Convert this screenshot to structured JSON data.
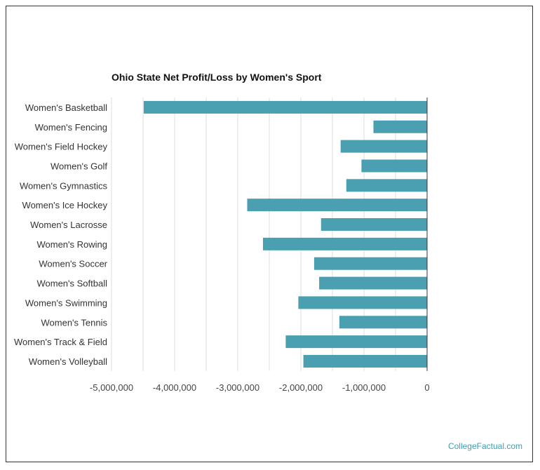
{
  "chart_data": {
    "type": "bar",
    "orientation": "horizontal",
    "title": "Ohio State Net Profit/Loss by Women's Sport",
    "xlabel": "",
    "ylabel": "",
    "xlim": [
      -5000000,
      0
    ],
    "xticks": [
      -5000000,
      -4000000,
      -3000000,
      -2000000,
      -1000000,
      0
    ],
    "xtick_labels": [
      "-5,000,000",
      "-4,000,000",
      "-3,000,000",
      "-2,000,000",
      "-1,000,000",
      "0"
    ],
    "grid": true,
    "categories": [
      "Women's Basketball",
      "Women's Fencing",
      "Women's Field Hockey",
      "Women's Golf",
      "Women's Gymnastics",
      "Women's Ice Hockey",
      "Women's Lacrosse",
      "Women's Rowing",
      "Women's Soccer",
      "Women's Softball",
      "Women's Swimming",
      "Women's Tennis",
      "Women's Track & Field",
      "Women's Volleyball"
    ],
    "values": [
      -4490000,
      -850000,
      -1370000,
      -1040000,
      -1280000,
      -2850000,
      -1680000,
      -2600000,
      -1790000,
      -1710000,
      -2040000,
      -1390000,
      -2240000,
      -1960000
    ],
    "color": "#4a9fb0"
  },
  "watermark": "CollegeFactual.com"
}
